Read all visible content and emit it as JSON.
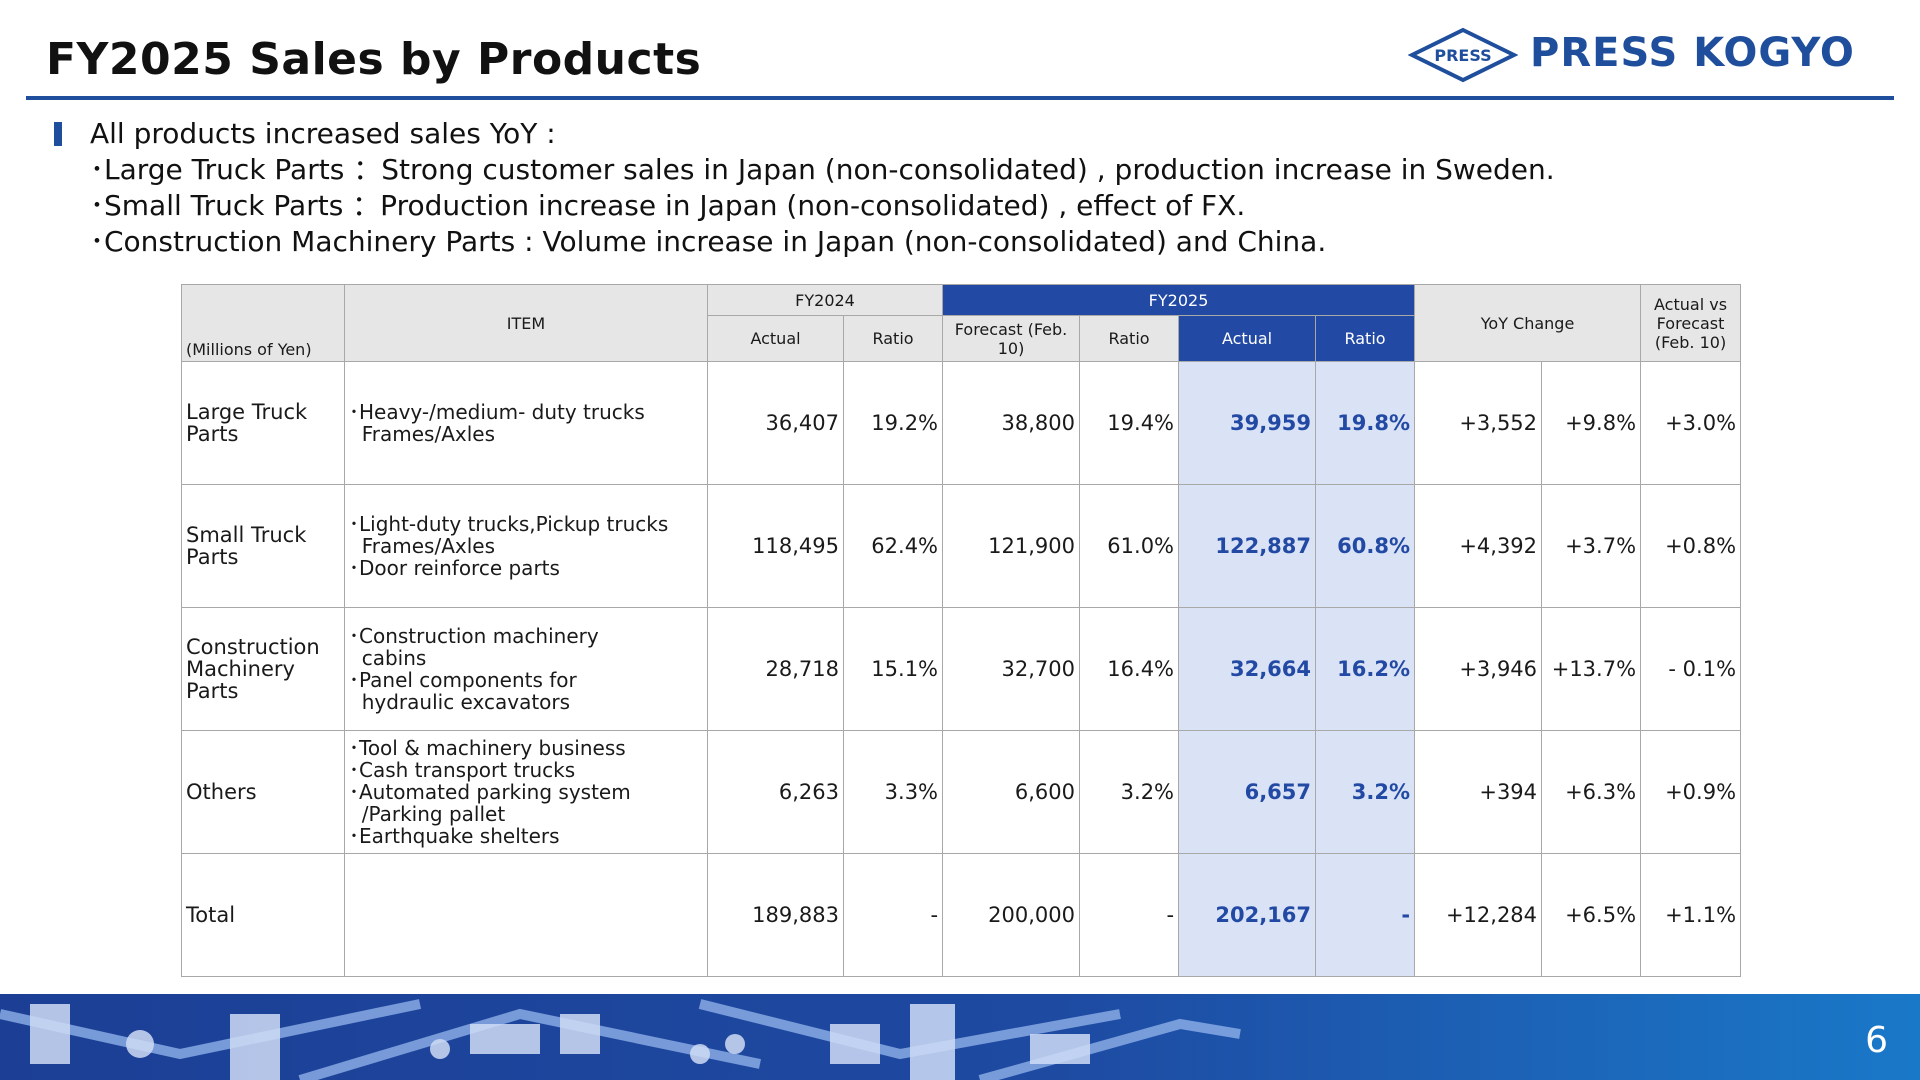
{
  "header": {
    "title": "FY2025 Sales by Products",
    "logo_emblem_text": "PRESS",
    "logo_text": "PRESS KOGYO",
    "brand_color": "#1f4e9c"
  },
  "summary": {
    "headline": "All products increased sales YoY :",
    "points": [
      "･Large Truck Parts ：Strong customer sales in Japan (non-consolidated) , production increase in Sweden.",
      "･Small Truck Parts ：Production increase in Japan (non-consolidated) , effect of FX.",
      "･Construction Machinery Parts :  Volume increase in Japan (non-consolidated) and China."
    ]
  },
  "table": {
    "unit": "(Millions of Yen)",
    "item_header": "ITEM",
    "fy2024": "FY2024",
    "fy2025": "FY2025",
    "yoy": "YoY Change",
    "actual_vs_forecast": "Actual vs Forecast (Feb. 10)",
    "sub": {
      "actual": "Actual",
      "ratio": "Ratio",
      "forecast": "Forecast (Feb. 10)",
      "ratio2": "Ratio",
      "actual2": "Actual",
      "ratio3": "Ratio"
    },
    "rows": [
      {
        "segment": "Large Truck Parts",
        "items": [
          "･Heavy-/medium- duty trucks",
          "  Frames/Axles"
        ],
        "fy24_actual": "36,407",
        "fy24_ratio": "19.2%",
        "fy25_forecast": "38,800",
        "fy25_forecast_ratio": "19.4%",
        "fy25_actual": "39,959",
        "fy25_ratio": "19.8%",
        "yoy_amount": "+3,552",
        "yoy_pct": "+9.8%",
        "vs_forecast": "+3.0%"
      },
      {
        "segment": "Small Truck Parts",
        "items": [
          "･Light-duty trucks,Pickup trucks",
          "  Frames/Axles",
          "･Door reinforce parts"
        ],
        "fy24_actual": "118,495",
        "fy24_ratio": "62.4%",
        "fy25_forecast": "121,900",
        "fy25_forecast_ratio": "61.0%",
        "fy25_actual": "122,887",
        "fy25_ratio": "60.8%",
        "yoy_amount": "+4,392",
        "yoy_pct": "+3.7%",
        "vs_forecast": "+0.8%"
      },
      {
        "segment": "Construction Machinery Parts",
        "items": [
          "･Construction machinery",
          "  cabins",
          "･Panel components for",
          "  hydraulic excavators"
        ],
        "fy24_actual": "28,718",
        "fy24_ratio": "15.1%",
        "fy25_forecast": "32,700",
        "fy25_forecast_ratio": "16.4%",
        "fy25_actual": "32,664",
        "fy25_ratio": "16.2%",
        "yoy_amount": "+3,946",
        "yoy_pct": "+13.7%",
        "vs_forecast": "- 0.1%"
      },
      {
        "segment": "Others",
        "items": [
          "･Tool & machinery business",
          "･Cash transport trucks",
          "･Automated parking system",
          "  /Parking pallet",
          "･Earthquake shelters"
        ],
        "fy24_actual": "6,263",
        "fy24_ratio": "3.3%",
        "fy25_forecast": "6,600",
        "fy25_forecast_ratio": "3.2%",
        "fy25_actual": "6,657",
        "fy25_ratio": "3.2%",
        "yoy_amount": "+394",
        "yoy_pct": "+6.3%",
        "vs_forecast": "+0.9%"
      },
      {
        "segment": "Total",
        "items": [],
        "fy24_actual": "189,883",
        "fy24_ratio": "-",
        "fy25_forecast": "200,000",
        "fy25_forecast_ratio": "-",
        "fy25_actual": "202,167",
        "fy25_ratio": "-",
        "yoy_amount": "+12,284",
        "yoy_pct": "+6.5%",
        "vs_forecast": "+1.1%"
      }
    ],
    "highlight_color": "#dae3f6",
    "header_blue": "#2249a3"
  },
  "footer": {
    "page_number": "6"
  }
}
